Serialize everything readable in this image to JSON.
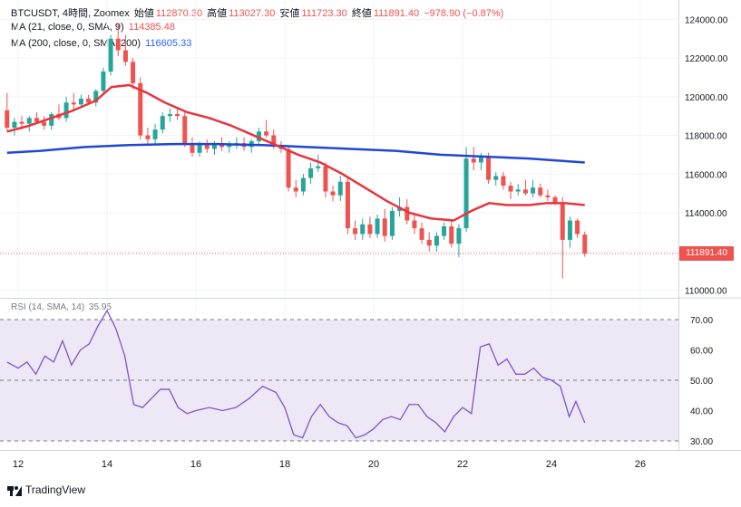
{
  "header": {
    "symbol": "BTCUSDT, 4時間, Zoomex",
    "open_label": "始値",
    "open": "112870.30",
    "high_label": "高値",
    "high": "113027.30",
    "low_label": "安値",
    "low": "111723.30",
    "close_label": "終値",
    "close": "111891.40",
    "change": "−978.90 (−0.87%)"
  },
  "ma21": {
    "label": "MA (21, close, 0, SMA, 9)",
    "value": "114385.48",
    "color": "#e8343f"
  },
  "ma200": {
    "label": "MA (200, close, 0, SMA, 200)",
    "value": "116605.33",
    "color": "#2046d6"
  },
  "rsi": {
    "label": "RSI (14, SMA, 14)",
    "value": "35.95",
    "color": "#7e57c2",
    "band": [
      30,
      70
    ],
    "mid": 50
  },
  "last_price": "111891.40",
  "brand": "TradingView",
  "colors": {
    "up": "#26a69a",
    "down": "#ef5350",
    "band_fill": "#ede7f6"
  },
  "chart_data": {
    "type": "candlestick",
    "x_axis": {
      "ticks": [
        "12",
        "14",
        "16",
        "18",
        "20",
        "22",
        "24",
        "26"
      ],
      "unit": "day"
    },
    "y_axis": {
      "ticks": [
        "124000.00",
        "122000.00",
        "120000.00",
        "118000.00",
        "116000.00",
        "114000.00",
        "112000.00",
        "110000.00"
      ],
      "range": [
        109600,
        125000
      ]
    },
    "rsi_axis": {
      "ticks": [
        "70.00",
        "60.00",
        "50.00",
        "40.00",
        "30.00"
      ],
      "range": [
        27,
        73
      ]
    },
    "candles": [
      {
        "t": 11.75,
        "o": 119300,
        "h": 120200,
        "l": 118200,
        "c": 118400
      },
      {
        "t": 11.917,
        "o": 118400,
        "h": 118900,
        "l": 118000,
        "c": 118700
      },
      {
        "t": 12.083,
        "o": 118700,
        "h": 119000,
        "l": 118300,
        "c": 118600
      },
      {
        "t": 12.25,
        "o": 118600,
        "h": 119000,
        "l": 118200,
        "c": 118900
      },
      {
        "t": 12.417,
        "o": 118900,
        "h": 119200,
        "l": 118600,
        "c": 118700
      },
      {
        "t": 12.583,
        "o": 118700,
        "h": 119000,
        "l": 118300,
        "c": 118500
      },
      {
        "t": 12.75,
        "o": 118500,
        "h": 119200,
        "l": 118300,
        "c": 119100
      },
      {
        "t": 12.917,
        "o": 119100,
        "h": 119600,
        "l": 118800,
        "c": 118900
      },
      {
        "t": 13.083,
        "o": 118900,
        "h": 120000,
        "l": 118700,
        "c": 119700
      },
      {
        "t": 13.25,
        "o": 119700,
        "h": 120200,
        "l": 119300,
        "c": 119600
      },
      {
        "t": 13.417,
        "o": 119600,
        "h": 120100,
        "l": 119400,
        "c": 119900
      },
      {
        "t": 13.583,
        "o": 119900,
        "h": 120100,
        "l": 119600,
        "c": 119700
      },
      {
        "t": 13.75,
        "o": 119700,
        "h": 120400,
        "l": 119500,
        "c": 120300
      },
      {
        "t": 13.917,
        "o": 120300,
        "h": 121500,
        "l": 120100,
        "c": 121300
      },
      {
        "t": 14.083,
        "o": 121300,
        "h": 123200,
        "l": 121100,
        "c": 123000
      },
      {
        "t": 14.25,
        "o": 123000,
        "h": 123800,
        "l": 122100,
        "c": 122400
      },
      {
        "t": 14.417,
        "o": 122400,
        "h": 123200,
        "l": 121600,
        "c": 121800
      },
      {
        "t": 14.583,
        "o": 121800,
        "h": 122000,
        "l": 120400,
        "c": 120700
      },
      {
        "t": 14.75,
        "o": 120700,
        "h": 121000,
        "l": 117800,
        "c": 118000
      },
      {
        "t": 14.917,
        "o": 118000,
        "h": 118400,
        "l": 117500,
        "c": 117800
      },
      {
        "t": 15.083,
        "o": 117800,
        "h": 118600,
        "l": 117500,
        "c": 118300
      },
      {
        "t": 15.25,
        "o": 118300,
        "h": 119200,
        "l": 118100,
        "c": 119000
      },
      {
        "t": 15.417,
        "o": 119000,
        "h": 119400,
        "l": 118700,
        "c": 119100
      },
      {
        "t": 15.583,
        "o": 119100,
        "h": 119400,
        "l": 118800,
        "c": 119000
      },
      {
        "t": 15.75,
        "o": 119000,
        "h": 119200,
        "l": 117400,
        "c": 117600
      },
      {
        "t": 15.917,
        "o": 117600,
        "h": 117900,
        "l": 116900,
        "c": 117100
      },
      {
        "t": 16.083,
        "o": 117100,
        "h": 117700,
        "l": 116900,
        "c": 117500
      },
      {
        "t": 16.25,
        "o": 117500,
        "h": 117800,
        "l": 117100,
        "c": 117300
      },
      {
        "t": 16.417,
        "o": 117300,
        "h": 117700,
        "l": 117000,
        "c": 117600
      },
      {
        "t": 16.583,
        "o": 117600,
        "h": 117900,
        "l": 117200,
        "c": 117400
      },
      {
        "t": 16.75,
        "o": 117400,
        "h": 117700,
        "l": 117100,
        "c": 117500
      },
      {
        "t": 16.917,
        "o": 117500,
        "h": 117900,
        "l": 117300,
        "c": 117600
      },
      {
        "t": 17.083,
        "o": 117600,
        "h": 117900,
        "l": 117200,
        "c": 117400
      },
      {
        "t": 17.25,
        "o": 117400,
        "h": 117800,
        "l": 117100,
        "c": 117700
      },
      {
        "t": 17.417,
        "o": 117700,
        "h": 118400,
        "l": 117500,
        "c": 118200
      },
      {
        "t": 17.583,
        "o": 118200,
        "h": 118800,
        "l": 117900,
        "c": 118000
      },
      {
        "t": 17.75,
        "o": 118000,
        "h": 118300,
        "l": 117300,
        "c": 117500
      },
      {
        "t": 17.917,
        "o": 117500,
        "h": 117700,
        "l": 117100,
        "c": 117300
      },
      {
        "t": 18.083,
        "o": 117300,
        "h": 117500,
        "l": 115100,
        "c": 115300
      },
      {
        "t": 18.25,
        "o": 115300,
        "h": 115700,
        "l": 114800,
        "c": 115100
      },
      {
        "t": 18.417,
        "o": 115100,
        "h": 116000,
        "l": 114900,
        "c": 115800
      },
      {
        "t": 18.583,
        "o": 115800,
        "h": 116600,
        "l": 115500,
        "c": 116300
      },
      {
        "t": 18.75,
        "o": 116300,
        "h": 117000,
        "l": 116100,
        "c": 116400
      },
      {
        "t": 18.917,
        "o": 116400,
        "h": 116600,
        "l": 114800,
        "c": 115100
      },
      {
        "t": 19.083,
        "o": 115100,
        "h": 115400,
        "l": 114600,
        "c": 114900
      },
      {
        "t": 19.25,
        "o": 114900,
        "h": 115900,
        "l": 114600,
        "c": 115600
      },
      {
        "t": 19.417,
        "o": 115600,
        "h": 115900,
        "l": 112900,
        "c": 113200
      },
      {
        "t": 19.583,
        "o": 113200,
        "h": 113600,
        "l": 112600,
        "c": 112900
      },
      {
        "t": 19.75,
        "o": 112900,
        "h": 113700,
        "l": 112600,
        "c": 113400
      },
      {
        "t": 19.917,
        "o": 113400,
        "h": 113800,
        "l": 112700,
        "c": 112900
      },
      {
        "t": 20.083,
        "o": 112900,
        "h": 113900,
        "l": 112700,
        "c": 113700
      },
      {
        "t": 20.25,
        "o": 113700,
        "h": 114200,
        "l": 112500,
        "c": 112800
      },
      {
        "t": 20.417,
        "o": 112800,
        "h": 114300,
        "l": 112600,
        "c": 114100
      },
      {
        "t": 20.583,
        "o": 114100,
        "h": 114800,
        "l": 113800,
        "c": 114300
      },
      {
        "t": 20.75,
        "o": 114300,
        "h": 114700,
        "l": 113400,
        "c": 113600
      },
      {
        "t": 20.917,
        "o": 113600,
        "h": 113900,
        "l": 112900,
        "c": 113200
      },
      {
        "t": 21.083,
        "o": 113200,
        "h": 113500,
        "l": 112400,
        "c": 112600
      },
      {
        "t": 21.25,
        "o": 112600,
        "h": 113000,
        "l": 112000,
        "c": 112300
      },
      {
        "t": 21.417,
        "o": 112300,
        "h": 113000,
        "l": 112000,
        "c": 112800
      },
      {
        "t": 21.583,
        "o": 112800,
        "h": 113500,
        "l": 112600,
        "c": 113300
      },
      {
        "t": 21.75,
        "o": 113300,
        "h": 113600,
        "l": 112200,
        "c": 112400
      },
      {
        "t": 21.917,
        "o": 112400,
        "h": 113400,
        "l": 111700,
        "c": 113200
      },
      {
        "t": 22.083,
        "o": 113200,
        "h": 117400,
        "l": 113000,
        "c": 116800
      },
      {
        "t": 22.25,
        "o": 116800,
        "h": 117400,
        "l": 116200,
        "c": 116600
      },
      {
        "t": 22.417,
        "o": 116600,
        "h": 117100,
        "l": 116200,
        "c": 116900
      },
      {
        "t": 22.583,
        "o": 116900,
        "h": 117100,
        "l": 115500,
        "c": 115700
      },
      {
        "t": 22.75,
        "o": 115700,
        "h": 116100,
        "l": 115400,
        "c": 115900
      },
      {
        "t": 22.917,
        "o": 115900,
        "h": 116100,
        "l": 115200,
        "c": 115400
      },
      {
        "t": 23.083,
        "o": 115400,
        "h": 115600,
        "l": 114700,
        "c": 115100
      },
      {
        "t": 23.25,
        "o": 115100,
        "h": 115500,
        "l": 114900,
        "c": 115200
      },
      {
        "t": 23.417,
        "o": 115200,
        "h": 115700,
        "l": 114900,
        "c": 115000
      },
      {
        "t": 23.583,
        "o": 115000,
        "h": 115700,
        "l": 114800,
        "c": 115300
      },
      {
        "t": 23.75,
        "o": 115300,
        "h": 115500,
        "l": 114800,
        "c": 114900
      },
      {
        "t": 23.917,
        "o": 114900,
        "h": 115200,
        "l": 114600,
        "c": 114800
      },
      {
        "t": 24.083,
        "o": 114800,
        "h": 114900,
        "l": 114400,
        "c": 114500
      },
      {
        "t": 24.25,
        "o": 114500,
        "h": 114800,
        "l": 110600,
        "c": 112600
      },
      {
        "t": 24.417,
        "o": 112600,
        "h": 113800,
        "l": 112200,
        "c": 113600
      },
      {
        "t": 24.583,
        "o": 113600,
        "h": 113700,
        "l": 112700,
        "c": 112900
      },
      {
        "t": 24.75,
        "o": 112870.3,
        "h": 113027.3,
        "l": 111723.3,
        "c": 111891.4
      }
    ],
    "ma21": [
      [
        11.75,
        118200
      ],
      [
        12.25,
        118500
      ],
      [
        12.75,
        118900
      ],
      [
        13.25,
        119300
      ],
      [
        13.75,
        119800
      ],
      [
        14.1,
        120500
      ],
      [
        14.5,
        120600
      ],
      [
        14.9,
        120200
      ],
      [
        15.3,
        119700
      ],
      [
        15.8,
        119200
      ],
      [
        16.3,
        118900
      ],
      [
        16.8,
        118500
      ],
      [
        17.3,
        118000
      ],
      [
        17.8,
        117500
      ],
      [
        18.3,
        117000
      ],
      [
        18.8,
        116600
      ],
      [
        19.3,
        116000
      ],
      [
        19.8,
        115300
      ],
      [
        20.3,
        114600
      ],
      [
        20.8,
        114000
      ],
      [
        21.3,
        113700
      ],
      [
        21.8,
        113600
      ],
      [
        22.2,
        114100
      ],
      [
        22.6,
        114500
      ],
      [
        23.0,
        114400
      ],
      [
        23.5,
        114400
      ],
      [
        23.9,
        114500
      ],
      [
        24.3,
        114500
      ],
      [
        24.75,
        114400
      ]
    ],
    "ma200": [
      [
        11.75,
        117100
      ],
      [
        12.5,
        117200
      ],
      [
        13.5,
        117400
      ],
      [
        14.5,
        117500
      ],
      [
        15.5,
        117550
      ],
      [
        16.5,
        117550
      ],
      [
        17.5,
        117500
      ],
      [
        18.5,
        117400
      ],
      [
        19.5,
        117300
      ],
      [
        20.5,
        117200
      ],
      [
        21.5,
        117000
      ],
      [
        22.5,
        116900
      ],
      [
        23.5,
        116800
      ],
      [
        24.75,
        116600
      ]
    ],
    "rsi": [
      [
        11.75,
        56
      ],
      [
        12.0,
        54
      ],
      [
        12.2,
        56
      ],
      [
        12.4,
        52
      ],
      [
        12.6,
        58
      ],
      [
        12.8,
        56
      ],
      [
        13.0,
        63
      ],
      [
        13.2,
        55
      ],
      [
        13.4,
        60
      ],
      [
        13.6,
        62
      ],
      [
        13.8,
        68
      ],
      [
        14.0,
        73
      ],
      [
        14.2,
        67
      ],
      [
        14.4,
        58
      ],
      [
        14.6,
        42
      ],
      [
        14.8,
        41
      ],
      [
        15.0,
        44
      ],
      [
        15.2,
        47
      ],
      [
        15.4,
        47
      ],
      [
        15.6,
        41
      ],
      [
        15.8,
        39
      ],
      [
        16.0,
        40
      ],
      [
        16.3,
        41
      ],
      [
        16.6,
        40
      ],
      [
        16.9,
        41
      ],
      [
        17.2,
        44
      ],
      [
        17.5,
        48
      ],
      [
        17.8,
        46
      ],
      [
        18.0,
        41
      ],
      [
        18.2,
        32
      ],
      [
        18.4,
        31
      ],
      [
        18.6,
        38
      ],
      [
        18.8,
        42
      ],
      [
        19.0,
        38
      ],
      [
        19.2,
        36
      ],
      [
        19.4,
        35
      ],
      [
        19.6,
        31
      ],
      [
        19.8,
        32
      ],
      [
        20.0,
        34
      ],
      [
        20.2,
        37
      ],
      [
        20.4,
        38
      ],
      [
        20.6,
        37
      ],
      [
        20.8,
        42
      ],
      [
        21.0,
        42
      ],
      [
        21.2,
        38
      ],
      [
        21.4,
        36
      ],
      [
        21.6,
        33
      ],
      [
        21.8,
        38
      ],
      [
        22.0,
        41
      ],
      [
        22.2,
        39
      ],
      [
        22.4,
        61
      ],
      [
        22.6,
        62
      ],
      [
        22.8,
        55
      ],
      [
        23.0,
        57
      ],
      [
        23.2,
        52
      ],
      [
        23.4,
        52
      ],
      [
        23.6,
        54
      ],
      [
        23.8,
        51
      ],
      [
        24.0,
        50
      ],
      [
        24.2,
        48
      ],
      [
        24.4,
        38
      ],
      [
        24.55,
        43
      ],
      [
        24.75,
        36
      ]
    ]
  }
}
